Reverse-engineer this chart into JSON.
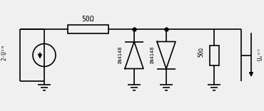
{
  "bg_color": "#f0f0f0",
  "line_color": "#000000",
  "lw": 1.2,
  "dot_r": 3.5,
  "fig_w": 3.7,
  "fig_h": 1.56,
  "dpi": 100,
  "label_50R_top": "50Ω",
  "label_2Uin": "2·U",
  "label_IN": "IN",
  "label_1N4148": "1N4148",
  "label_50R": "50Ω",
  "label_Uout": "U",
  "label_OUT": "OUT"
}
